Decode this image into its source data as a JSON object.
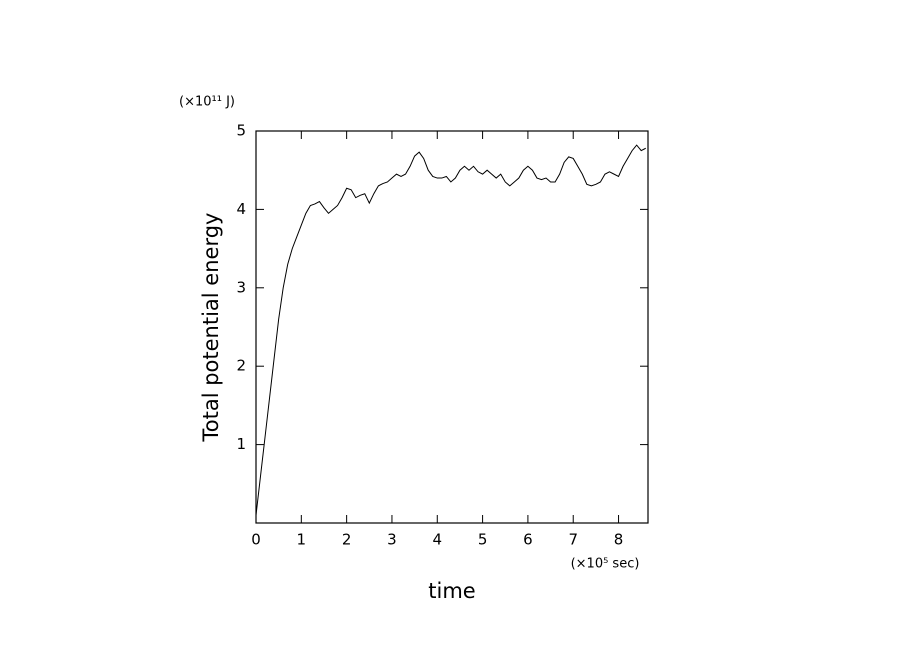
{
  "chart_data": {
    "type": "line",
    "y_label": "Total potential energy",
    "x_label": "time",
    "y_unit": "(×10¹¹ J)",
    "x_unit": "(×10⁵ sec)",
    "xlim": [
      0,
      8.65
    ],
    "ylim": [
      0,
      5
    ],
    "xticks": [
      0,
      1,
      2,
      3,
      4,
      5,
      6,
      7,
      8
    ],
    "yticks": [
      1,
      2,
      3,
      4,
      5
    ],
    "x": [
      0,
      0.1,
      0.2,
      0.3,
      0.4,
      0.5,
      0.6,
      0.7,
      0.8,
      0.9,
      1.0,
      1.1,
      1.2,
      1.3,
      1.4,
      1.5,
      1.6,
      1.7,
      1.8,
      1.9,
      2.0,
      2.1,
      2.2,
      2.3,
      2.4,
      2.5,
      2.6,
      2.7,
      2.8,
      2.9,
      3.0,
      3.1,
      3.2,
      3.3,
      3.4,
      3.5,
      3.6,
      3.7,
      3.8,
      3.9,
      4.0,
      4.1,
      4.2,
      4.3,
      4.4,
      4.5,
      4.6,
      4.7,
      4.8,
      4.9,
      5.0,
      5.1,
      5.2,
      5.3,
      5.4,
      5.5,
      5.6,
      5.7,
      5.8,
      5.9,
      6.0,
      6.1,
      6.2,
      6.3,
      6.4,
      6.5,
      6.6,
      6.7,
      6.8,
      6.9,
      7.0,
      7.1,
      7.2,
      7.3,
      7.4,
      7.5,
      7.6,
      7.7,
      7.8,
      7.9,
      8.0,
      8.1,
      8.2,
      8.3,
      8.4,
      8.5,
      8.6
    ],
    "series": [
      {
        "name": "Total potential energy",
        "color": "#000000",
        "values": [
          0.1,
          0.6,
          1.1,
          1.6,
          2.1,
          2.6,
          3.0,
          3.3,
          3.5,
          3.65,
          3.8,
          3.95,
          4.05,
          4.07,
          4.1,
          4.02,
          3.95,
          4.0,
          4.05,
          4.15,
          4.27,
          4.25,
          4.15,
          4.18,
          4.2,
          4.08,
          4.2,
          4.3,
          4.33,
          4.35,
          4.4,
          4.45,
          4.42,
          4.45,
          4.55,
          4.68,
          4.73,
          4.65,
          4.5,
          4.42,
          4.4,
          4.4,
          4.42,
          4.35,
          4.4,
          4.5,
          4.55,
          4.5,
          4.55,
          4.48,
          4.45,
          4.5,
          4.45,
          4.4,
          4.45,
          4.35,
          4.3,
          4.35,
          4.4,
          4.5,
          4.55,
          4.5,
          4.4,
          4.38,
          4.4,
          4.35,
          4.35,
          4.45,
          4.6,
          4.67,
          4.65,
          4.55,
          4.45,
          4.32,
          4.3,
          4.32,
          4.35,
          4.45,
          4.48,
          4.45,
          4.42,
          4.55,
          4.65,
          4.75,
          4.82,
          4.75,
          4.78
        ]
      }
    ]
  }
}
